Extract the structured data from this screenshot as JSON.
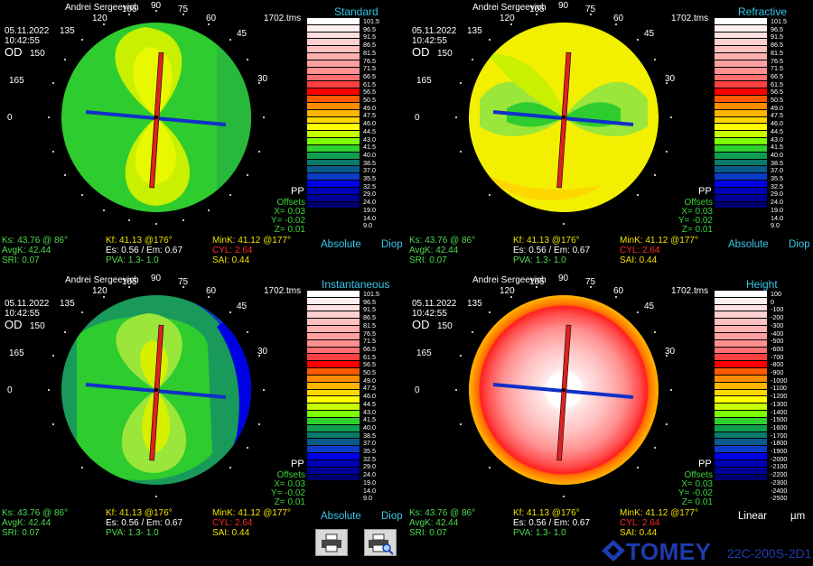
{
  "patient_name": "Andrei Sergeevich",
  "date": "05.11.2022",
  "time": "10:42:55",
  "eye": "OD",
  "filename": "1702.tms",
  "pp_label": "PP",
  "offsets": {
    "title": "Offsets",
    "x": "X= 0.03",
    "y": "Y= -0.02",
    "z": "Z= 0.01"
  },
  "angles": [
    "90",
    "75",
    "60",
    "45",
    "30",
    "0",
    "165",
    "150",
    "135",
    "120",
    "105"
  ],
  "maps": [
    {
      "title": "Standard",
      "unit_left": "Absolute",
      "unit_right": "Diop"
    },
    {
      "title": "Refractive",
      "unit_left": "Absolute",
      "unit_right": "Diop"
    },
    {
      "title": "Instantaneous",
      "unit_left": "Absolute",
      "unit_right": "Diop"
    },
    {
      "title": "Height",
      "unit_left": "Linear",
      "unit_right": "µm"
    }
  ],
  "diop_scale": [
    "101.5",
    "96.5",
    "91.5",
    "86.5",
    "81.5",
    "76.5",
    "71.5",
    "66.5",
    "61.5",
    "56.5",
    "50.5",
    "49.0",
    "47.5",
    "46.0",
    "44.5",
    "43.0",
    "41.5",
    "40.0",
    "38.5",
    "37.0",
    "35.5",
    "32.5",
    "29.0",
    "24.0",
    "19.0",
    "14.0",
    "9.0"
  ],
  "height_scale": [
    "100",
    "0",
    "-100",
    "-200",
    "-300",
    "-400",
    "-500",
    "-600",
    "-700",
    "-800",
    "-900",
    "-1000",
    "-1100",
    "-1200",
    "-1300",
    "-1400",
    "-1500",
    "-1600",
    "-1700",
    "-1800",
    "-1900",
    "-2000",
    "-2100",
    "-2200",
    "-2300",
    "-2400",
    "-2500"
  ],
  "scale_colors": [
    "#ffffff",
    "#fff0f0",
    "#ffe0e0",
    "#ffd0d0",
    "#ffc0c0",
    "#ffb0b0",
    "#ffa0a0",
    "#ff9090",
    "#ff7070",
    "#ff4040",
    "#ff0000",
    "#ff5a00",
    "#ff8c00",
    "#ffb400",
    "#ffd700",
    "#ffff00",
    "#c8ff00",
    "#7cff00",
    "#2ed12e",
    "#0f9e4f",
    "#0a7a6a",
    "#0a5a8a",
    "#0a3cc8",
    "#0000e6",
    "#0000b4",
    "#000096",
    "#00006e"
  ],
  "stats": {
    "ks": "Ks: 43.76 @ 86°",
    "kf": "Kf: 41.13 @176°",
    "mink": "MinK: 41.12 @177°",
    "avgk": "AvgK: 42.44",
    "es_em": "Es: 0.56 / Em: 0.67",
    "cyl": "CYL:  2.64",
    "sri": "SRI: 0.07",
    "pva": "PVA:  1.3-  1.0",
    "sai": "SAI: 0.44"
  },
  "buttons": {
    "print": "printer-icon",
    "preview": "print-preview-icon"
  },
  "brand": {
    "name": "TOMEY",
    "model": "22C-200S-2D1",
    "color": "#1f3cae"
  }
}
